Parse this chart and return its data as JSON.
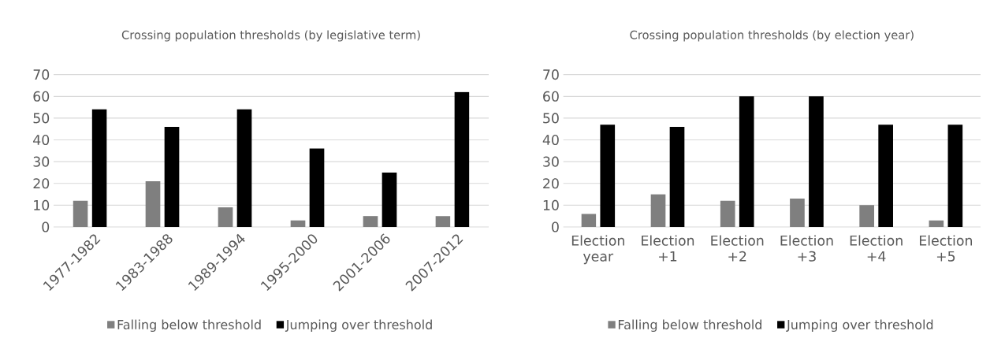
{
  "chart_data": [
    {
      "type": "bar",
      "title": "Crossing population thresholds (by legislative term)",
      "categories": [
        "1977-1982",
        "1983-1988",
        "1989-1994",
        "1995-2000",
        "2001-2006",
        "2007-2012"
      ],
      "series": [
        {
          "name": "Falling below threshold",
          "color": "#7f7f7f",
          "values": [
            12,
            21,
            9,
            3,
            5,
            5
          ]
        },
        {
          "name": "Jumping over threshold",
          "color": "#000000",
          "values": [
            54,
            46,
            54,
            36,
            25,
            62
          ]
        }
      ],
      "ylim": [
        0,
        70
      ],
      "yticks": [
        0,
        10,
        20,
        30,
        40,
        50,
        60,
        70
      ],
      "grid": "y",
      "legend": "bottom"
    },
    {
      "type": "bar",
      "title": "Crossing population thresholds (by election year)",
      "categories": [
        "Election year",
        "Election +1",
        "Election +2",
        "Election +3",
        "Election +4",
        "Election +5"
      ],
      "series": [
        {
          "name": "Falling below threshold",
          "color": "#7f7f7f",
          "values": [
            6,
            15,
            12,
            13,
            10,
            3
          ]
        },
        {
          "name": "Jumping over threshold",
          "color": "#000000",
          "values": [
            47,
            46,
            60,
            60,
            47,
            47
          ]
        }
      ],
      "ylim": [
        0,
        70
      ],
      "yticks": [
        0,
        10,
        20,
        30,
        40,
        50,
        60,
        70
      ],
      "grid": "y",
      "legend": "bottom"
    }
  ]
}
